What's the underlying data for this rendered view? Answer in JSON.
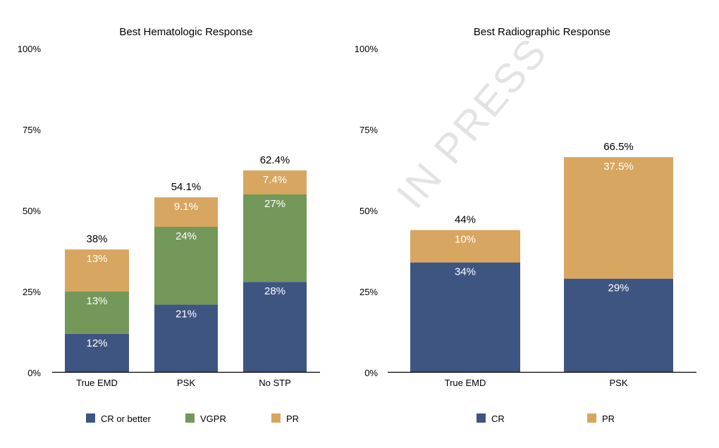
{
  "colors": {
    "cr": "#3e5582",
    "vgpr": "#74975a",
    "pr": "#d7a660",
    "axis": "#000000",
    "watermark": "#d9d9d9"
  },
  "watermark": "IN PRESS",
  "chart_data": [
    {
      "type": "bar",
      "stacked": true,
      "title": "Best Hematologic Response",
      "ylim": [
        0,
        100
      ],
      "yticks": [
        "0%",
        "25%",
        "50%",
        "75%",
        "100%"
      ],
      "ytick_values": [
        0,
        25,
        50,
        75,
        100
      ],
      "categories": [
        "True EMD",
        "PSK",
        "No STP"
      ],
      "series": [
        {
          "name": "CR or better",
          "color_key": "cr",
          "values": [
            12,
            21,
            28
          ],
          "labels": [
            "12%",
            "21%",
            "28%"
          ]
        },
        {
          "name": "VGPR",
          "color_key": "vgpr",
          "values": [
            13,
            24,
            27
          ],
          "labels": [
            "13%",
            "24%",
            "27%"
          ]
        },
        {
          "name": "PR",
          "color_key": "pr",
          "values": [
            13,
            9.1,
            7.4
          ],
          "labels": [
            "13%",
            "9.1%",
            "7.4%"
          ]
        }
      ],
      "totals": [
        "38%",
        "54.1%",
        "62.4%"
      ],
      "total_values": [
        38,
        54.1,
        62.4
      ],
      "legend_position": "bottom"
    },
    {
      "type": "bar",
      "stacked": true,
      "title": "Best Radiographic Response",
      "ylim": [
        0,
        100
      ],
      "yticks": [
        "0%",
        "25%",
        "50%",
        "75%",
        "100%"
      ],
      "ytick_values": [
        0,
        25,
        50,
        75,
        100
      ],
      "categories": [
        "True EMD",
        "PSK"
      ],
      "series": [
        {
          "name": "CR",
          "color_key": "cr",
          "values": [
            34,
            29
          ],
          "labels": [
            "34%",
            "29%"
          ]
        },
        {
          "name": "PR",
          "color_key": "pr",
          "values": [
            10,
            37.5
          ],
          "labels": [
            "10%",
            "37.5%"
          ]
        }
      ],
      "totals": [
        "44%",
        "66.5%"
      ],
      "total_values": [
        44,
        66.5
      ],
      "legend_position": "bottom"
    }
  ]
}
